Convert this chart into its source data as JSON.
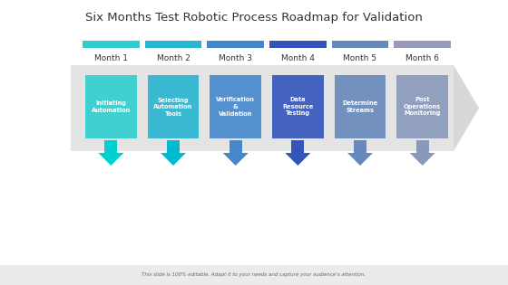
{
  "title": "Six Months Test Robotic Process Roadmap for Validation",
  "footer": "This slide is 100% editable. Adapt it to your needs and capture your audience's attention.",
  "months": [
    "Month 1",
    "Month 2",
    "Month 3",
    "Month 4",
    "Month 5",
    "Month 6"
  ],
  "labels": [
    "Initiating\nAutomation",
    "Selecting\nAutomation\nTools",
    "Verification\n&\nValidation",
    "Data\nResource\nTesting",
    "Determine\nStreams",
    "Post\nOperations\nMonitoring"
  ],
  "bar_colors": [
    "#2ecece",
    "#2ab5d0",
    "#4488cc",
    "#3355bb",
    "#6688bb",
    "#8899bb"
  ],
  "arrow_colors": [
    "#00d0d0",
    "#00bbd0",
    "#4488cc",
    "#3355bb",
    "#6688bb",
    "#8899bb"
  ],
  "header_colors": [
    "#2ecece",
    "#2ab5d0",
    "#4488cc",
    "#3355bb",
    "#6688bb",
    "#9999bb"
  ],
  "bg_color": "#ffffff",
  "title_fontsize": 9.5,
  "month_fontsize": 6.5,
  "label_fontsize": 4.8,
  "footer_fontsize": 4.0
}
